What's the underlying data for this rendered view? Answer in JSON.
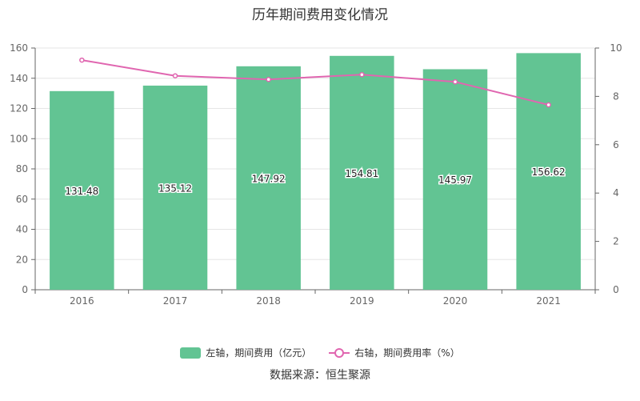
{
  "title": "历年期间费用变化情况",
  "source": "数据来源：恒生聚源",
  "colors": {
    "bar": "#62c493",
    "line": "#e066b0",
    "axis": "#666666",
    "grid": "#e6e6e6"
  },
  "chart_data": {
    "type": "bar",
    "categories": [
      "2016",
      "2017",
      "2018",
      "2019",
      "2020",
      "2021"
    ],
    "series": [
      {
        "name": "左轴，期间费用（亿元）",
        "kind": "bar",
        "axis": "left",
        "values": [
          131.48,
          135.12,
          147.92,
          154.81,
          145.97,
          156.62
        ]
      },
      {
        "name": "右轴，期间费用率（%）",
        "kind": "line",
        "axis": "right",
        "values": [
          9.5,
          8.85,
          8.7,
          8.9,
          8.6,
          7.65
        ]
      }
    ],
    "data_labels": [
      "131.48",
      "135.12",
      "147.92",
      "154.81",
      "145.97",
      "156.62"
    ],
    "y_left": {
      "min": 0,
      "max": 160,
      "ticks": [
        "0",
        "20",
        "40",
        "60",
        "80",
        "100",
        "120",
        "140",
        "160"
      ]
    },
    "y_right": {
      "min": 0,
      "max": 10,
      "ticks": [
        "0",
        "2",
        "4",
        "6",
        "8",
        "10"
      ]
    },
    "grid": true,
    "legend_position": "bottom"
  }
}
